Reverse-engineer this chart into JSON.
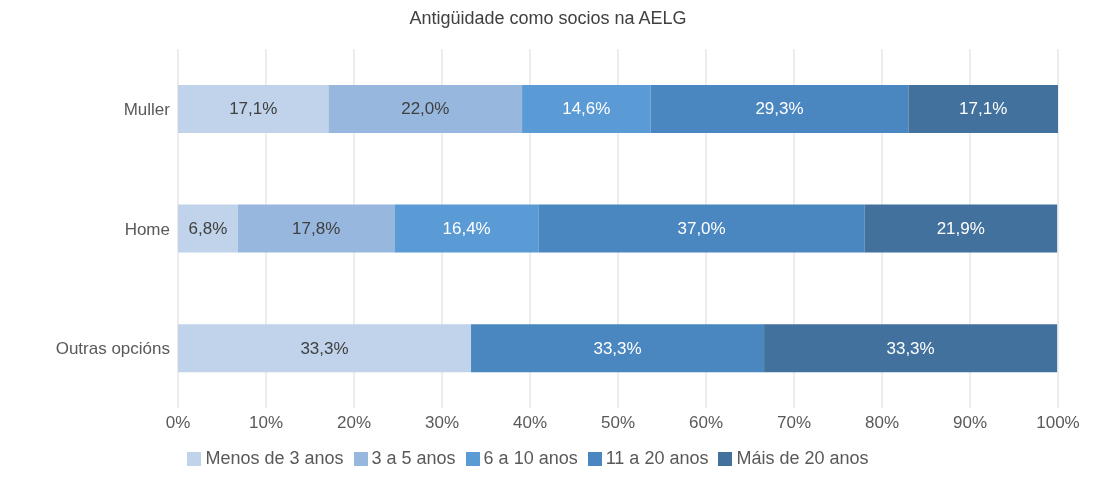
{
  "chart_data": {
    "type": "bar",
    "orientation": "horizontal",
    "stacked": true,
    "title": "Antigüidade como socios na AELG",
    "categories": [
      "Muller",
      "Home",
      "Outras opcións"
    ],
    "series": [
      {
        "name": "Menos de 3 anos",
        "color": "#c0d3ea",
        "values": [
          17.1,
          6.8,
          33.3
        ],
        "value_labels": [
          "17,1%",
          "6,8%",
          "33,3%"
        ]
      },
      {
        "name": "3 a 5 anos",
        "color": "#97b7de",
        "values": [
          22.0,
          17.8,
          null
        ],
        "value_labels": [
          "22,0%",
          "17,8%",
          null
        ]
      },
      {
        "name": "6 a 10 anos",
        "color": "#5b9bd5",
        "values": [
          14.6,
          16.4,
          null
        ],
        "value_labels": [
          "14,6%",
          "16,4%",
          null
        ]
      },
      {
        "name": "11 a 20 anos",
        "color": "#4a86bf",
        "values": [
          29.3,
          37.0,
          33.3
        ],
        "value_labels": [
          "29,3%",
          "37,0%",
          "33,3%"
        ]
      },
      {
        "name": "Máis de 20 anos",
        "color": "#41719c",
        "values": [
          17.1,
          21.9,
          33.3
        ],
        "value_labels": [
          "17,1%",
          "21,9%",
          "33,3%"
        ]
      }
    ],
    "xlim": [
      0,
      100
    ],
    "xticks": [
      {
        "value": 0,
        "label": "0%"
      },
      {
        "value": 10,
        "label": "10%"
      },
      {
        "value": 20,
        "label": "20%"
      },
      {
        "value": 30,
        "label": "30%"
      },
      {
        "value": 40,
        "label": "40%"
      },
      {
        "value": 50,
        "label": "50%"
      },
      {
        "value": 60,
        "label": "60%"
      },
      {
        "value": 70,
        "label": "70%"
      },
      {
        "value": 80,
        "label": "80%"
      },
      {
        "value": 90,
        "label": "90%"
      },
      {
        "value": 100,
        "label": "100%"
      }
    ],
    "grid": "x",
    "legend": "bottom"
  }
}
